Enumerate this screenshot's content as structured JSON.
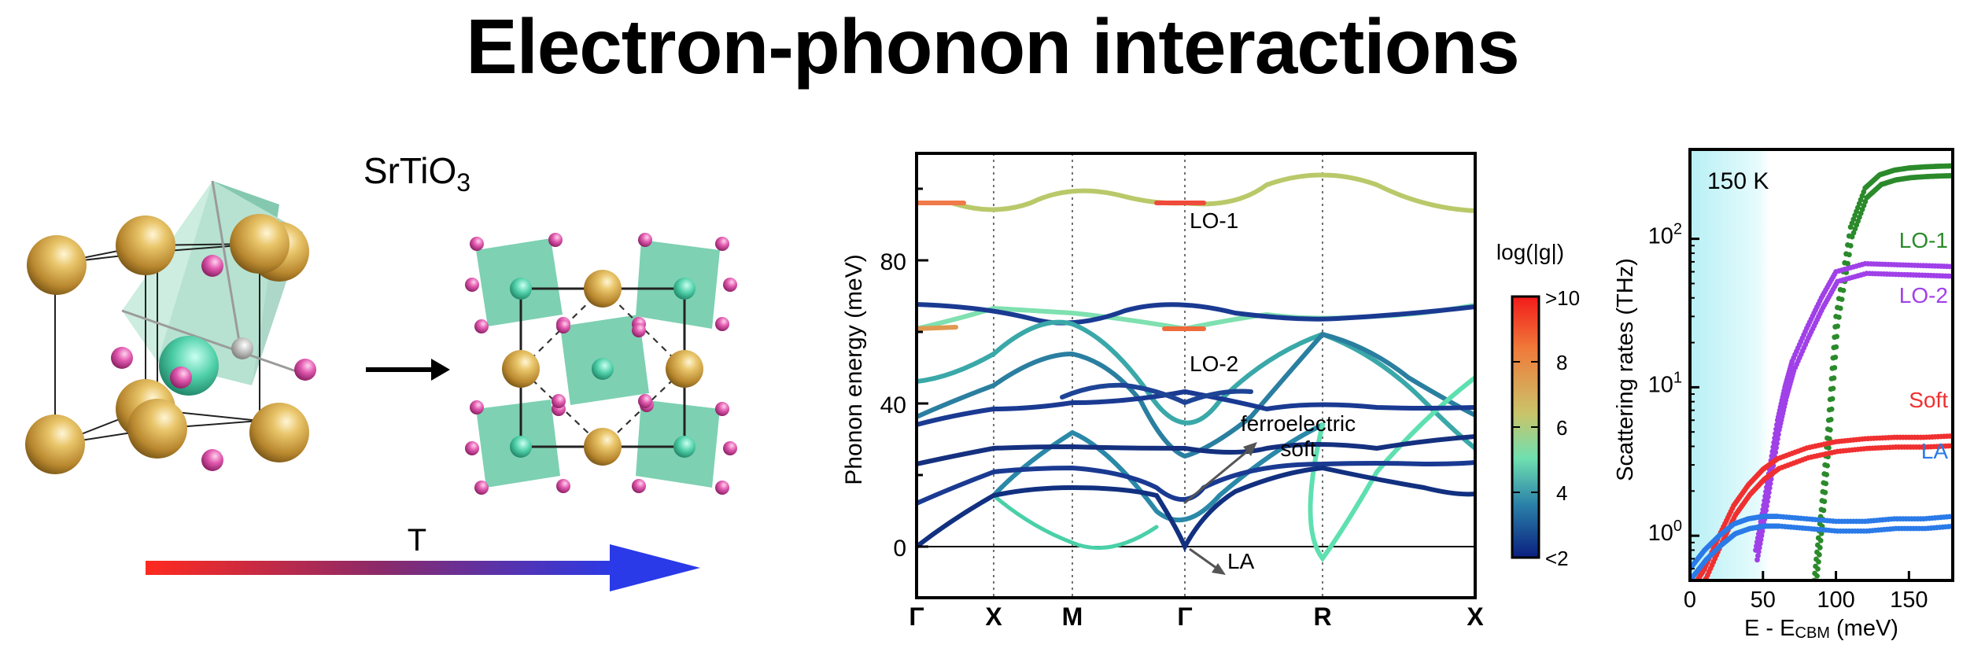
{
  "title": "Electron-phonon interactions",
  "structure": {
    "formula": "SrTiO",
    "formula_sub": "3",
    "temperature_label": "T"
  },
  "phonon_panel": {
    "ylabel": "Phonon energy (meV)",
    "yticks": [
      "0",
      "40",
      "80"
    ],
    "kpoints": [
      "Γ",
      "X",
      "M",
      "Γ",
      "R",
      "X"
    ],
    "annotations": {
      "lo1": "LO-1",
      "lo2": "LO-2",
      "ferro1": "ferroelectric",
      "ferro2": "soft",
      "la": "LA"
    },
    "colorbar": {
      "title": "log(|g|)",
      "ticks": [
        ">10",
        "8",
        "6",
        "4",
        "<2"
      ]
    }
  },
  "chart_data": {
    "type": "scatter",
    "xlabel": "E - E",
    "xlabel_sub": "CBM",
    "xlabel_unit": " (meV)",
    "ylabel": "Scattering rates (THz)",
    "xlim": [
      0,
      180
    ],
    "ylim": [
      0.5,
      400
    ],
    "yscale": "log",
    "xticks": [
      0,
      50,
      100,
      150
    ],
    "yticks": [
      1,
      10,
      100
    ],
    "annotation": "150 K",
    "series": [
      {
        "name": "LO-1",
        "color": "#2b8a2b",
        "x": [
          85,
          90,
          95,
          100,
          110,
          120,
          130,
          140,
          150,
          160,
          170,
          180
        ],
        "y": [
          0.5,
          1.5,
          6,
          30,
          120,
          220,
          270,
          290,
          300,
          305,
          308,
          310
        ]
      },
      {
        "name": "LO-2",
        "color": "#a040e8",
        "x": [
          45,
          50,
          55,
          60,
          65,
          70,
          80,
          90,
          100,
          120,
          140,
          160,
          180
        ],
        "y": [
          0.8,
          1.5,
          3,
          6,
          10,
          15,
          25,
          40,
          60,
          68,
          67,
          66,
          65
        ]
      },
      {
        "name": "Soft",
        "color": "#f03030",
        "x": [
          5,
          10,
          20,
          30,
          40,
          50,
          60,
          80,
          100,
          120,
          140,
          160,
          180
        ],
        "y": [
          0.5,
          0.6,
          1.0,
          1.6,
          2.2,
          2.8,
          3.3,
          3.9,
          4.3,
          4.5,
          4.6,
          4.6,
          4.7
        ]
      },
      {
        "name": "LA",
        "color": "#2a7ae8",
        "x": [
          0,
          10,
          20,
          30,
          40,
          50,
          60,
          80,
          100,
          120,
          140,
          160,
          180
        ],
        "y": [
          0.6,
          0.8,
          1.0,
          1.2,
          1.3,
          1.35,
          1.35,
          1.3,
          1.25,
          1.25,
          1.3,
          1.3,
          1.35
        ]
      }
    ]
  }
}
